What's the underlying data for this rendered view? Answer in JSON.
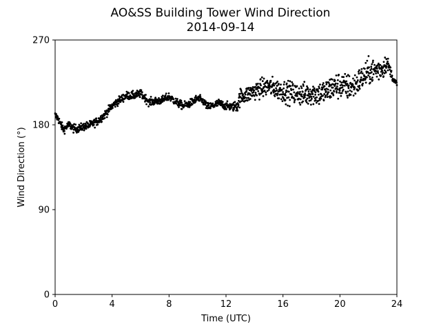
{
  "chart_data": {
    "type": "scatter",
    "title": "AO&SS Building Tower Wind Direction",
    "subtitle": "2014-09-14",
    "xlabel": "Time (UTC)",
    "ylabel": "Wind Direction (°)",
    "xlim": [
      0,
      24
    ],
    "ylim": [
      0,
      270
    ],
    "xticks": [
      0,
      4,
      8,
      12,
      16,
      20,
      24
    ],
    "yticks": [
      0,
      90,
      180,
      270
    ],
    "grid": false,
    "marker_color": "#000000",
    "trend": [
      [
        0.0,
        190
      ],
      [
        0.2,
        187
      ],
      [
        0.4,
        180
      ],
      [
        0.6,
        175
      ],
      [
        0.8,
        178
      ],
      [
        1.0,
        180
      ],
      [
        1.3,
        176
      ],
      [
        1.6,
        176
      ],
      [
        2.0,
        178
      ],
      [
        2.5,
        180
      ],
      [
        3.0,
        184
      ],
      [
        3.5,
        191
      ],
      [
        4.0,
        200
      ],
      [
        4.5,
        206
      ],
      [
        5.0,
        211
      ],
      [
        5.5,
        211
      ],
      [
        6.0,
        213
      ],
      [
        6.3,
        209
      ],
      [
        6.6,
        204
      ],
      [
        7.0,
        205
      ],
      [
        7.5,
        206
      ],
      [
        8.0,
        210
      ],
      [
        8.5,
        204
      ],
      [
        9.0,
        200
      ],
      [
        9.5,
        203
      ],
      [
        10.0,
        208
      ],
      [
        10.4,
        205
      ],
      [
        10.7,
        199
      ],
      [
        11.0,
        200
      ],
      [
        11.5,
        203
      ],
      [
        12.0,
        200
      ],
      [
        12.5,
        199
      ],
      [
        12.8,
        201
      ],
      [
        13.0,
        210
      ],
      [
        13.5,
        212
      ],
      [
        14.0,
        216
      ],
      [
        14.5,
        219
      ],
      [
        15.0,
        221
      ],
      [
        15.5,
        218
      ],
      [
        16.0,
        216
      ],
      [
        16.5,
        214
      ],
      [
        17.0,
        213
      ],
      [
        17.5,
        212
      ],
      [
        18.0,
        214
      ],
      [
        18.5,
        213
      ],
      [
        19.0,
        215
      ],
      [
        19.5,
        220
      ],
      [
        20.0,
        222
      ],
      [
        20.5,
        220
      ],
      [
        21.0,
        221
      ],
      [
        21.5,
        229
      ],
      [
        22.0,
        236
      ],
      [
        22.5,
        238
      ],
      [
        23.0,
        240
      ],
      [
        23.2,
        245
      ],
      [
        23.4,
        243
      ],
      [
        23.6,
        235
      ],
      [
        23.8,
        226
      ],
      [
        24.0,
        223
      ]
    ],
    "scatter_band": [
      [
        0.0,
        3
      ],
      [
        12.5,
        3
      ],
      [
        12.9,
        6
      ],
      [
        16.0,
        8
      ],
      [
        20.0,
        10
      ],
      [
        23.0,
        9
      ],
      [
        23.6,
        3
      ],
      [
        24.0,
        3
      ]
    ],
    "sample_interval_hours": 0.0167
  }
}
